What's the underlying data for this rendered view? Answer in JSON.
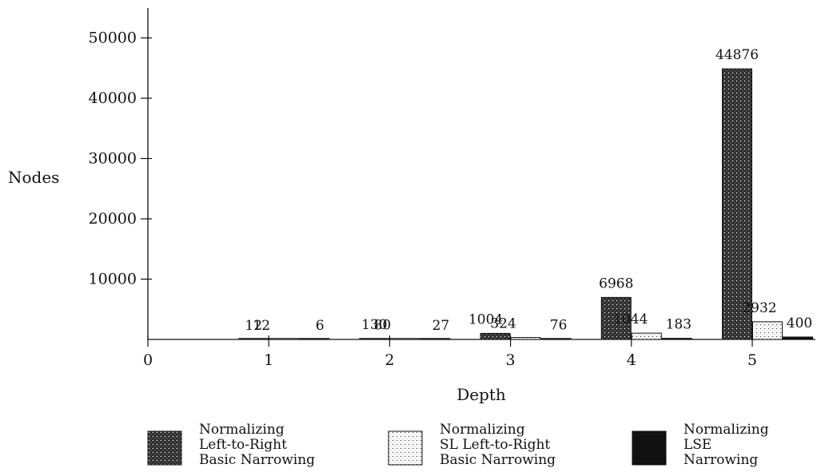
{
  "chart_data": {
    "type": "bar",
    "xlabel": "Depth",
    "ylabel": "Nodes",
    "x_ticks": [
      "0",
      "1",
      "2",
      "3",
      "4",
      "5"
    ],
    "y_ticks": [
      "10000",
      "20000",
      "30000",
      "40000",
      "50000"
    ],
    "xlim": [
      0,
      5.45
    ],
    "ylim": [
      0,
      55000
    ],
    "grid": false,
    "legend_position": "bottom",
    "categories": [
      "1",
      "2",
      "3",
      "4",
      "5"
    ],
    "series": [
      {
        "name": "Normalizing Left-to-Right Basic Narrowing",
        "legend_lines": [
          "Normalizing",
          "Left-to-Right",
          "Basic Narrowing"
        ],
        "pattern": "dense-dotted",
        "values": [
          12,
          130,
          1004,
          6968,
          44876
        ],
        "labels": [
          "12",
          "130",
          "1004",
          "6968",
          "44876"
        ]
      },
      {
        "name": "Normalizing SL Left-to-Right Basic Narrowing",
        "legend_lines": [
          "Normalizing",
          "SL Left-to-Right",
          "Basic Narrowing"
        ],
        "pattern": "light-dotted",
        "values": [
          12,
          80,
          324,
          1044,
          2932
        ],
        "labels": [
          "12",
          "80",
          "324",
          "1044",
          "2932"
        ]
      },
      {
        "name": "Normalizing LSE Narrowing",
        "legend_lines": [
          "Normalizing",
          "LSE",
          "Narrowing"
        ],
        "pattern": "solid",
        "values": [
          6,
          27,
          76,
          183,
          400
        ],
        "labels": [
          "6",
          "27",
          "76",
          "183",
          "400"
        ]
      }
    ],
    "colors": {
      "ink": "#111111",
      "background": "#ffffff"
    }
  }
}
